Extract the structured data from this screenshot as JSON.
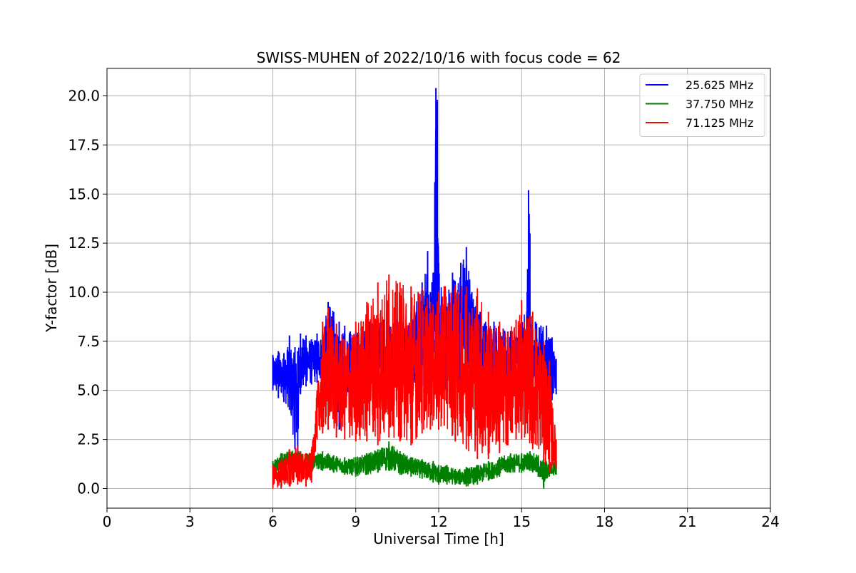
{
  "chart_data": {
    "type": "line",
    "title": "SWISS-MUHEN of 2022/10/16 with focus code = 62",
    "xlabel": "Universal Time [h]",
    "ylabel": "Y-factor [dB]",
    "xlim": [
      0,
      24
    ],
    "ylim": [
      -1.0,
      21.4
    ],
    "xticks": [
      0,
      3,
      6,
      9,
      12,
      15,
      18,
      21,
      24
    ],
    "xtick_labels": [
      "0",
      "3",
      "6",
      "9",
      "12",
      "15",
      "18",
      "21",
      "24"
    ],
    "yticks": [
      0,
      2.5,
      5,
      7.5,
      10,
      12.5,
      15,
      17.5,
      20
    ],
    "ytick_labels": [
      "0.0",
      "2.5",
      "5.0",
      "7.5",
      "10.0",
      "12.5",
      "15.0",
      "17.5",
      "20.0"
    ],
    "grid": true,
    "legend_position": "top-right",
    "series": [
      {
        "name": "25.625 MHz",
        "color": "#0000ff",
        "x": [
          6.0,
          6.2,
          6.4,
          6.6,
          6.8,
          6.9,
          7.0,
          7.2,
          7.4,
          7.6,
          7.8,
          8.0,
          8.2,
          8.4,
          8.6,
          8.8,
          9.0,
          9.5,
          10.0,
          10.5,
          11.0,
          11.4,
          11.6,
          11.7,
          11.8,
          11.9,
          11.95,
          12.0,
          12.2,
          12.5,
          12.8,
          13.0,
          13.2,
          13.5,
          14.0,
          14.5,
          14.8,
          15.0,
          15.2,
          15.25,
          15.3,
          15.35,
          15.5,
          15.7,
          15.9,
          16.1,
          16.25
        ],
        "low": [
          5.0,
          4.6,
          4.4,
          4.0,
          2.0,
          1.8,
          4.8,
          5.2,
          5.3,
          5.4,
          5.5,
          5.0,
          4.6,
          3.0,
          4.2,
          4.5,
          5.0,
          5.0,
          5.0,
          5.2,
          5.0,
          5.2,
          5.6,
          5.5,
          5.5,
          6.0,
          5.2,
          5.2,
          5.0,
          5.0,
          5.0,
          5.2,
          5.0,
          4.8,
          4.8,
          5.0,
          5.0,
          5.2,
          5.3,
          5.3,
          5.0,
          5.2,
          5.0,
          5.0,
          4.8,
          4.5,
          4.8
        ],
        "high": [
          6.8,
          7.0,
          6.9,
          7.8,
          7.2,
          7.0,
          7.9,
          7.8,
          7.6,
          7.9,
          8.0,
          9.5,
          9.0,
          8.5,
          8.3,
          8.0,
          8.0,
          8.5,
          8.6,
          8.6,
          9.0,
          10.5,
          12.1,
          10.0,
          11.0,
          20.4,
          19.8,
          11.5,
          10.0,
          11.0,
          11.5,
          12.3,
          10.0,
          9.0,
          8.5,
          8.0,
          8.2,
          8.2,
          10.0,
          15.2,
          13.0,
          8.2,
          8.5,
          8.3,
          8.3,
          7.7,
          6.6
        ]
      },
      {
        "name": "37.750 MHz",
        "color": "#008000",
        "x": [
          6.0,
          6.3,
          6.6,
          7.0,
          7.4,
          7.8,
          8.2,
          8.6,
          9.0,
          9.4,
          9.8,
          10.2,
          10.6,
          11.0,
          11.4,
          11.8,
          12.0,
          12.3,
          12.6,
          13.0,
          13.4,
          13.8,
          14.2,
          14.6,
          15.0,
          15.3,
          15.6,
          15.8,
          16.0,
          16.25
        ],
        "low": [
          0.7,
          0.9,
          1.0,
          0.8,
          0.9,
          0.9,
          0.8,
          0.7,
          0.6,
          0.7,
          0.8,
          0.9,
          0.7,
          0.6,
          0.5,
          0.3,
          0.2,
          0.2,
          0.2,
          0.1,
          0.2,
          0.4,
          0.6,
          0.8,
          0.8,
          0.9,
          0.6,
          0.0,
          0.6,
          0.7
        ],
        "high": [
          1.4,
          1.8,
          2.0,
          1.9,
          1.8,
          1.9,
          1.7,
          1.6,
          1.6,
          1.8,
          2.0,
          2.4,
          1.9,
          1.6,
          1.5,
          1.4,
          1.2,
          1.2,
          1.0,
          1.1,
          1.2,
          1.4,
          1.6,
          1.8,
          1.8,
          1.9,
          1.7,
          1.5,
          1.4,
          1.4
        ]
      },
      {
        "name": "71.125 MHz",
        "color": "#ff0000",
        "x": [
          6.0,
          6.3,
          6.6,
          6.9,
          7.2,
          7.4,
          7.6,
          7.8,
          8.0,
          8.3,
          8.6,
          9.0,
          9.4,
          9.8,
          10.2,
          10.6,
          11.0,
          11.4,
          11.7,
          12.0,
          12.2,
          12.6,
          13.0,
          13.4,
          13.8,
          14.2,
          14.5,
          14.8,
          15.0,
          15.4,
          15.8,
          16.0,
          16.25
        ],
        "low": [
          0.0,
          0.0,
          0.1,
          0.2,
          0.1,
          0.3,
          2.5,
          2.8,
          3.0,
          2.6,
          2.5,
          2.4,
          2.4,
          2.2,
          2.6,
          2.4,
          2.2,
          2.8,
          3.0,
          3.0,
          3.2,
          2.4,
          2.0,
          1.5,
          1.5,
          1.8,
          2.2,
          2.5,
          2.5,
          2.0,
          1.4,
          0.8,
          1.0
        ],
        "high": [
          1.2,
          1.5,
          2.0,
          2.2,
          1.8,
          2.0,
          5.0,
          8.5,
          9.2,
          8.4,
          7.6,
          8.5,
          9.5,
          10.5,
          10.9,
          10.5,
          10.3,
          10.2,
          9.5,
          10.0,
          10.3,
          10.4,
          10.3,
          10.2,
          9.0,
          8.5,
          8.0,
          8.6,
          9.6,
          9.0,
          7.5,
          6.5,
          2.5
        ]
      }
    ]
  }
}
